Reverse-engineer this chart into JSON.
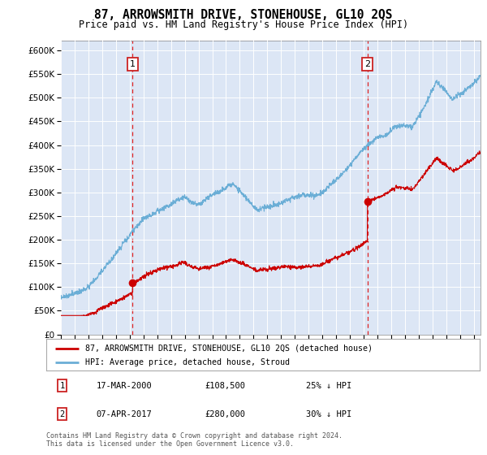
{
  "title": "87, ARROWSMITH DRIVE, STONEHOUSE, GL10 2QS",
  "subtitle": "Price paid vs. HM Land Registry's House Price Index (HPI)",
  "legend_line1": "87, ARROWSMITH DRIVE, STONEHOUSE, GL10 2QS (detached house)",
  "legend_line2": "HPI: Average price, detached house, Stroud",
  "table_rows": [
    [
      "1",
      "17-MAR-2000",
      "£108,500",
      "25% ↓ HPI"
    ],
    [
      "2",
      "07-APR-2017",
      "£280,000",
      "30% ↓ HPI"
    ]
  ],
  "footer": "Contains HM Land Registry data © Crown copyright and database right 2024.\nThis data is licensed under the Open Government Licence v3.0.",
  "marker1_year": 2000.21,
  "marker2_year": 2017.27,
  "marker1_price": 108500,
  "marker2_price": 280000,
  "hpi_color": "#6baed6",
  "property_color": "#cc0000",
  "marker_color": "#cc0000",
  "annotation_box_color": "#cc2222",
  "background_color": "#dce6f5",
  "ylim": [
    0,
    620000
  ],
  "yticks": [
    0,
    50000,
    100000,
    150000,
    200000,
    250000,
    300000,
    350000,
    400000,
    450000,
    500000,
    550000,
    600000
  ],
  "xmin": 1995,
  "xmax": 2025.5
}
